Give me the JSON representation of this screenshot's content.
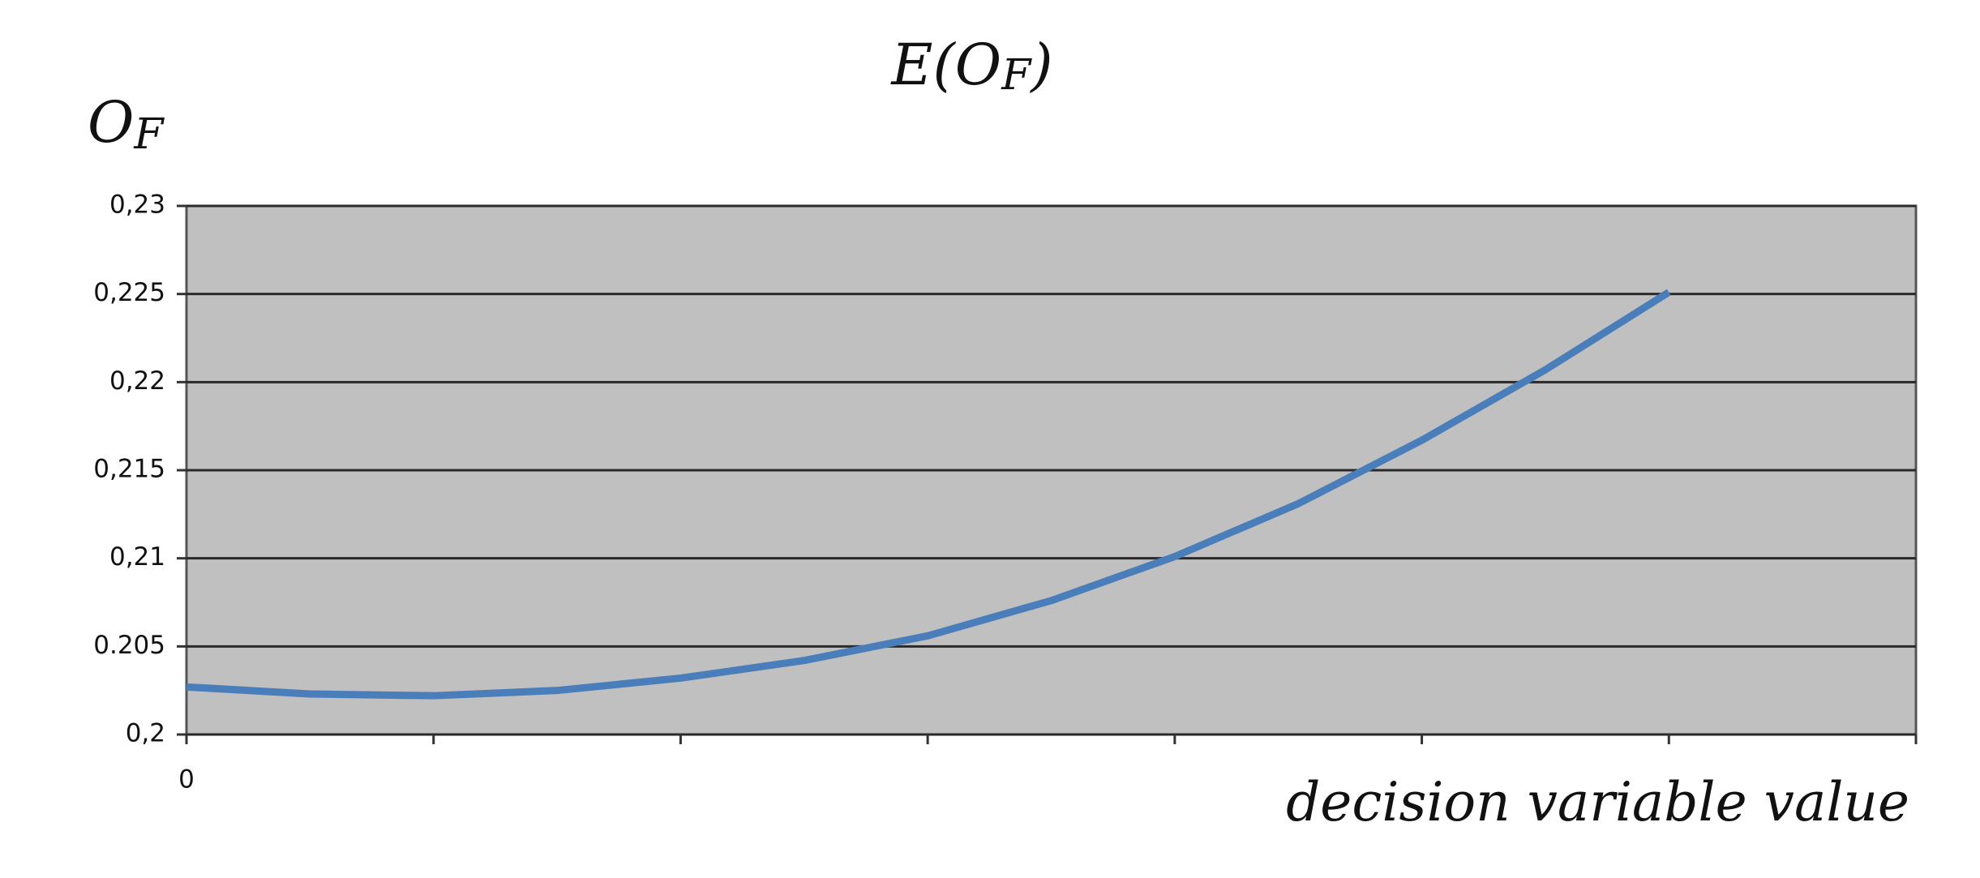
{
  "chart_data": {
    "type": "line",
    "title": [
      "E(O",
      "F",
      ")"
    ],
    "y_label": [
      "O",
      "F"
    ],
    "x_label": "decision variable value",
    "x": [
      0,
      0.5,
      1,
      1.5,
      2,
      2.5,
      3,
      3.5,
      4,
      4.5,
      5,
      5.5,
      6
    ],
    "series": [
      {
        "color": "#4a7ebb",
        "values": [
          0.2027,
          0.2023,
          0.2022,
          0.2025,
          0.2032,
          0.2042,
          0.2056,
          0.2076,
          0.2101,
          0.2131,
          0.2167,
          0.2207,
          0.2251
        ]
      }
    ],
    "xlim": [
      0,
      7
    ],
    "xticks": [
      0
    ],
    "xminor_ticks": [
      1,
      2,
      3,
      4,
      5,
      6,
      7
    ],
    "ylim": [
      0.2,
      0.23
    ],
    "yticks": [
      {
        "value": 0.2,
        "label": "0,2"
      },
      0.205,
      {
        "value": 0.21,
        "label": "0,21"
      },
      {
        "value": 0.215,
        "label": "0,215"
      },
      {
        "value": 0.22,
        "label": "0,22"
      },
      {
        "value": 0.225,
        "label": "0,225"
      },
      {
        "value": 0.23,
        "label": "0,23"
      }
    ],
    "grid": true,
    "plot_background": "#c0c0c0"
  }
}
